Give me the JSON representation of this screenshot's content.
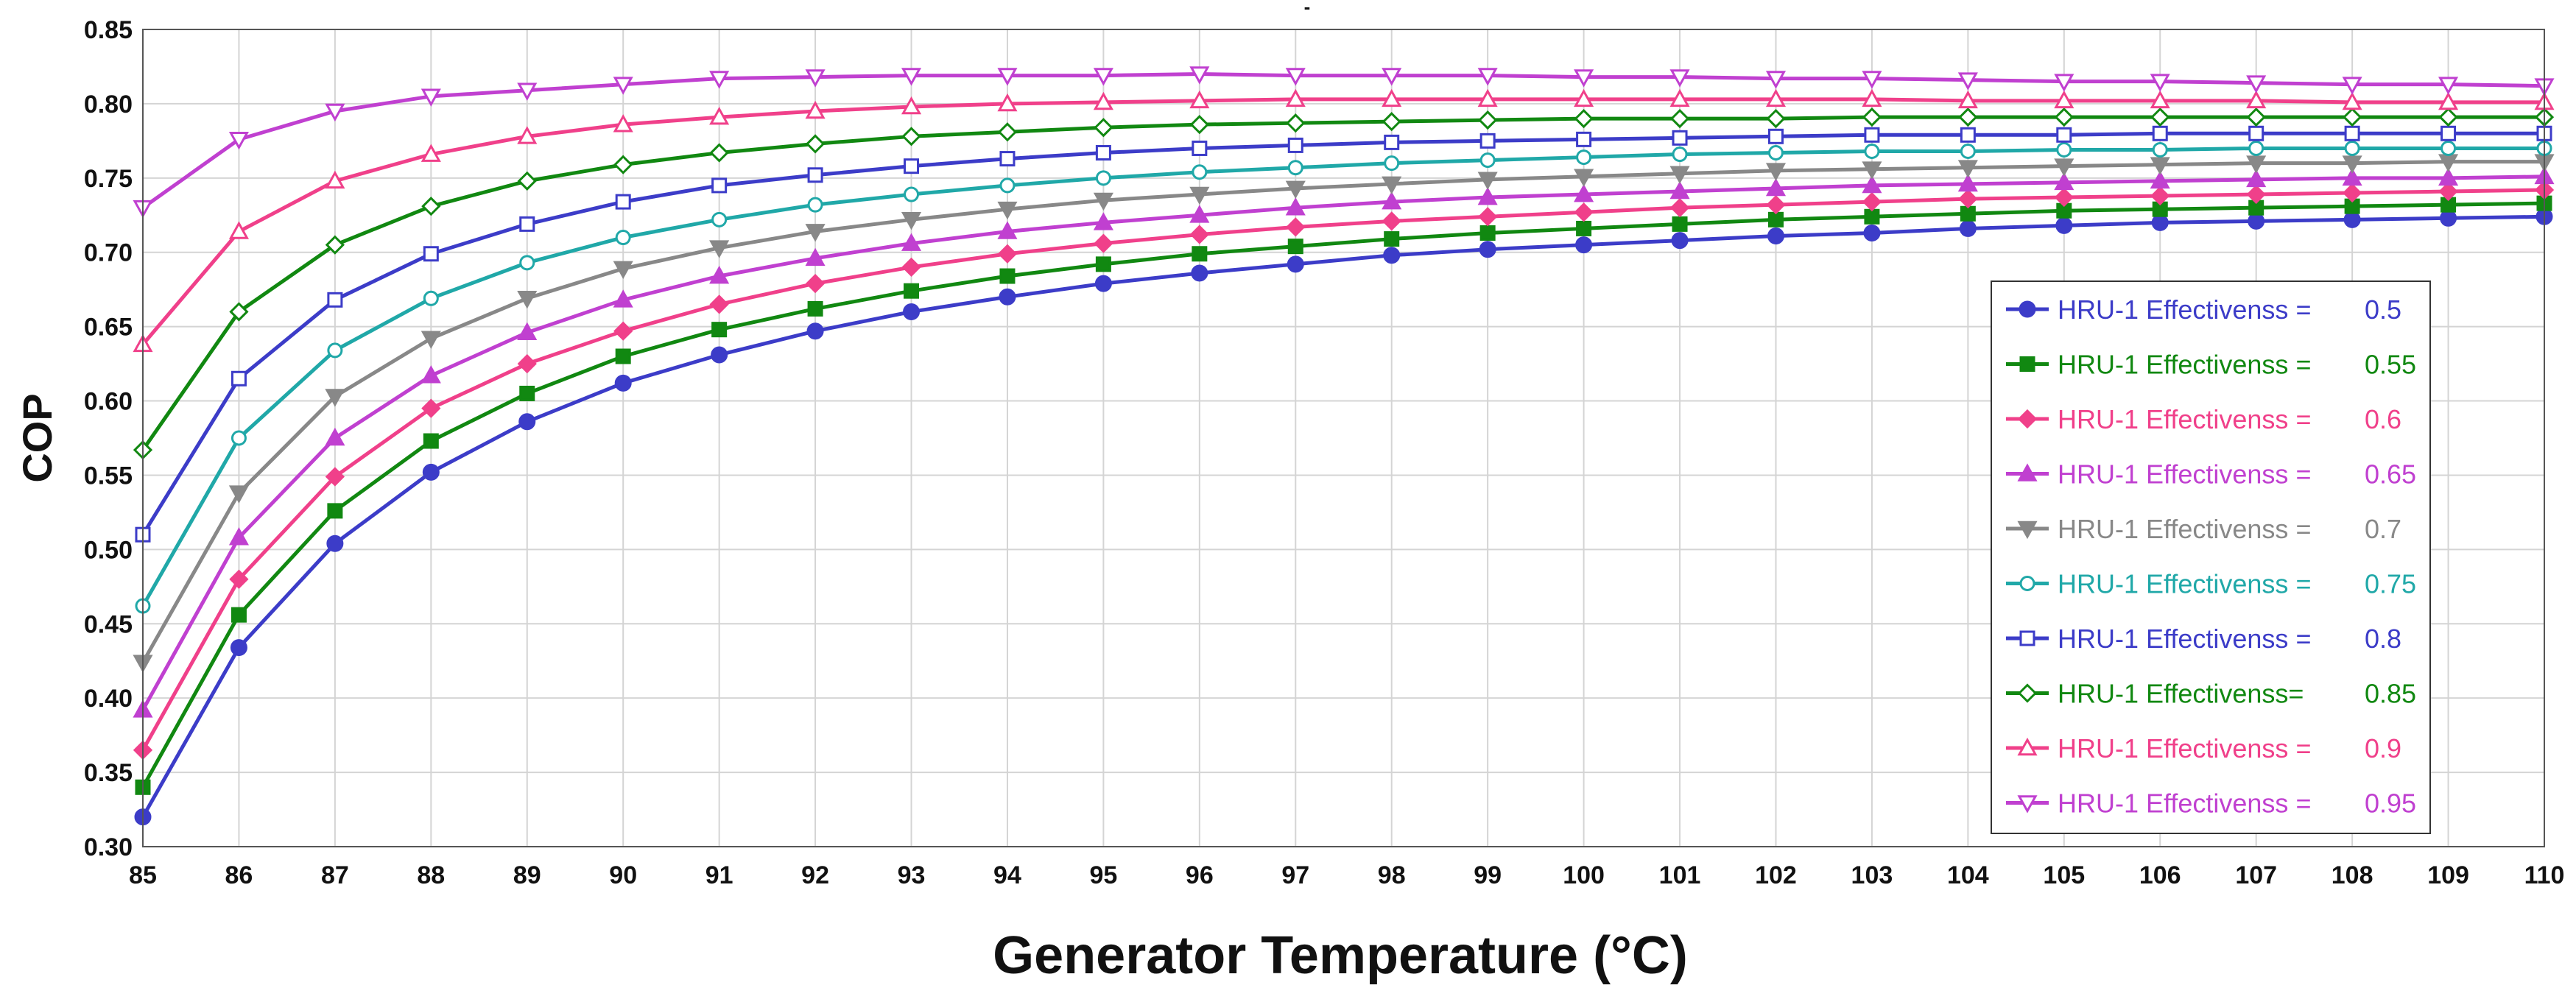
{
  "chart_data": {
    "type": "line",
    "title": "-",
    "xlabel": "Generator Temperature (°C)",
    "ylabel": "COP",
    "xlim": [
      85,
      110
    ],
    "ylim": [
      0.3,
      0.85
    ],
    "grid": true,
    "legend_position": "bottom-right",
    "x": [
      85,
      86,
      87,
      88,
      89,
      90,
      91,
      92,
      93,
      94,
      95,
      96,
      97,
      98,
      99,
      100,
      101,
      102,
      103,
      104,
      105,
      106,
      107,
      108,
      109,
      110
    ],
    "x_tick_labels": [
      "85",
      "86",
      "87",
      "88",
      "89",
      "90",
      "91",
      "92",
      "93",
      "94",
      "95",
      "96",
      "97",
      "98",
      "99",
      "100",
      "101",
      "102",
      "103",
      "104",
      "105",
      "106",
      "107",
      "108",
      "109",
      "110"
    ],
    "y_tick_labels": [
      "0.30",
      "0.35",
      "0.40",
      "0.45",
      "0.50",
      "0.55",
      "0.60",
      "0.65",
      "0.70",
      "0.75",
      "0.80",
      "0.85"
    ],
    "y_ticks": [
      0.3,
      0.35,
      0.4,
      0.45,
      0.5,
      0.55,
      0.6,
      0.65,
      0.7,
      0.75,
      0.8,
      0.85
    ],
    "series": [
      {
        "name": "HRU-1 Effectivenss =  0.5",
        "legend_label": "HRU-1 Effectivenss =",
        "legend_value": "0.5",
        "color": "#3c3cc8",
        "marker": "circle-filled",
        "values": [
          0.32,
          0.434,
          0.504,
          0.552,
          0.586,
          0.612,
          0.631,
          0.647,
          0.66,
          0.67,
          0.679,
          0.686,
          0.692,
          0.698,
          0.702,
          0.705,
          0.708,
          0.711,
          0.713,
          0.716,
          0.718,
          0.72,
          0.721,
          0.722,
          0.723,
          0.724
        ]
      },
      {
        "name": "HRU-1 Effectivenss =  0.55",
        "legend_label": "HRU-1 Effectivenss =",
        "legend_value": "0.55",
        "color": "#118811",
        "marker": "square-filled",
        "values": [
          0.34,
          0.456,
          0.526,
          0.573,
          0.605,
          0.63,
          0.648,
          0.662,
          0.674,
          0.684,
          0.692,
          0.699,
          0.704,
          0.709,
          0.713,
          0.716,
          0.719,
          0.722,
          0.724,
          0.726,
          0.728,
          0.729,
          0.73,
          0.731,
          0.732,
          0.733
        ]
      },
      {
        "name": "HRU-1 Effectivenss =  0.6",
        "legend_label": "HRU-1 Effectivenss =",
        "legend_value": "0.6",
        "color": "#f0408a",
        "marker": "diamond-filled",
        "values": [
          0.365,
          0.48,
          0.549,
          0.595,
          0.625,
          0.647,
          0.665,
          0.679,
          0.69,
          0.699,
          0.706,
          0.712,
          0.717,
          0.721,
          0.724,
          0.727,
          0.73,
          0.732,
          0.734,
          0.736,
          0.737,
          0.738,
          0.739,
          0.74,
          0.741,
          0.742
        ]
      },
      {
        "name": "HRU-1 Effectivenss =  0.65",
        "legend_label": "HRU-1 Effectivenss =",
        "legend_value": "0.65",
        "color": "#c040d0",
        "marker": "triangle-up-filled",
        "values": [
          0.392,
          0.508,
          0.575,
          0.617,
          0.646,
          0.668,
          0.684,
          0.696,
          0.706,
          0.714,
          0.72,
          0.725,
          0.73,
          0.734,
          0.737,
          0.739,
          0.741,
          0.743,
          0.745,
          0.746,
          0.747,
          0.748,
          0.749,
          0.75,
          0.75,
          0.751
        ]
      },
      {
        "name": "HRU-1 Effectivenss =  0.7",
        "legend_label": "HRU-1 Effectivenss =",
        "legend_value": "0.7",
        "color": "#888888",
        "marker": "triangle-down-filled",
        "values": [
          0.424,
          0.538,
          0.603,
          0.642,
          0.669,
          0.689,
          0.703,
          0.714,
          0.722,
          0.729,
          0.735,
          0.739,
          0.743,
          0.746,
          0.749,
          0.751,
          0.753,
          0.755,
          0.756,
          0.757,
          0.758,
          0.759,
          0.76,
          0.76,
          0.761,
          0.761
        ]
      },
      {
        "name": "HRU-1 Effectivenss =  0.75",
        "legend_label": "HRU-1 Effectivenss =",
        "legend_value": "0.75",
        "color": "#20a8a8",
        "marker": "circle-open",
        "values": [
          0.462,
          0.575,
          0.634,
          0.669,
          0.693,
          0.71,
          0.722,
          0.732,
          0.739,
          0.745,
          0.75,
          0.754,
          0.757,
          0.76,
          0.762,
          0.764,
          0.766,
          0.767,
          0.768,
          0.768,
          0.769,
          0.769,
          0.77,
          0.77,
          0.77,
          0.77
        ]
      },
      {
        "name": "HRU-1 Effectivenss =  0.8",
        "legend_label": "HRU-1 Effectivenss =",
        "legend_value": "0.8",
        "color": "#3c3cc8",
        "marker": "square-open",
        "values": [
          0.51,
          0.615,
          0.668,
          0.699,
          0.719,
          0.734,
          0.745,
          0.752,
          0.758,
          0.763,
          0.767,
          0.77,
          0.772,
          0.774,
          0.775,
          0.776,
          0.777,
          0.778,
          0.779,
          0.779,
          0.779,
          0.78,
          0.78,
          0.78,
          0.78,
          0.78
        ]
      },
      {
        "name": "HRU-1 Effectivenss= 0.85",
        "legend_label": "HRU-1 Effectivenss=",
        "legend_value": "0.85",
        "color": "#118811",
        "marker": "diamond-open",
        "values": [
          0.567,
          0.66,
          0.705,
          0.731,
          0.748,
          0.759,
          0.767,
          0.773,
          0.778,
          0.781,
          0.784,
          0.786,
          0.787,
          0.788,
          0.789,
          0.79,
          0.79,
          0.79,
          0.791,
          0.791,
          0.791,
          0.791,
          0.791,
          0.791,
          0.791,
          0.791
        ]
      },
      {
        "name": "HRU-1 Effectivenss =  0.9",
        "legend_label": "HRU-1 Effectivenss =",
        "legend_value": "0.9",
        "color": "#f0408a",
        "marker": "triangle-up-open",
        "values": [
          0.638,
          0.714,
          0.748,
          0.766,
          0.778,
          0.786,
          0.791,
          0.795,
          0.798,
          0.8,
          0.801,
          0.802,
          0.803,
          0.803,
          0.803,
          0.803,
          0.803,
          0.803,
          0.803,
          0.802,
          0.802,
          0.802,
          0.802,
          0.801,
          0.801,
          0.801
        ]
      },
      {
        "name": "HRU-1 Effectivenss =  0.95",
        "legend_label": "HRU-1 Effectivenss =",
        "legend_value": "0.95",
        "color": "#c040d0",
        "marker": "triangle-down-open",
        "values": [
          0.73,
          0.776,
          0.795,
          0.805,
          0.809,
          0.813,
          0.817,
          0.818,
          0.819,
          0.819,
          0.819,
          0.82,
          0.819,
          0.819,
          0.819,
          0.818,
          0.818,
          0.817,
          0.817,
          0.816,
          0.815,
          0.815,
          0.814,
          0.813,
          0.813,
          0.812
        ]
      }
    ]
  }
}
